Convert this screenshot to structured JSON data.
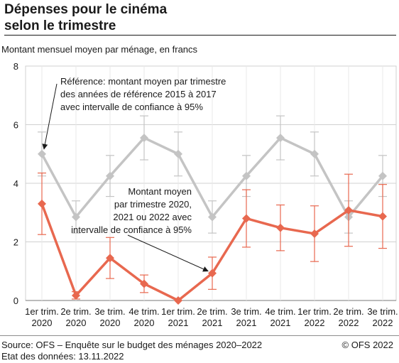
{
  "title_line1": "Dépenses pour le cinéma",
  "title_line2": "selon le trimestre",
  "subtitle": "Montant mensuel moyen par ménage, en francs",
  "source": "Source: OFS – Enquête sur le budget des ménages 2020–2022",
  "date": "Etat des données: 13.11.2022",
  "copyright": "© OFS 2022",
  "chart_data": {
    "type": "line",
    "categories": [
      [
        "1er trim.",
        "2020"
      ],
      [
        "2e trim.",
        "2020"
      ],
      [
        "3e trim.",
        "2020"
      ],
      [
        "4e trim.",
        "2020"
      ],
      [
        "1er trim.",
        "2021"
      ],
      [
        "2e trim.",
        "2021"
      ],
      [
        "3e trim.",
        "2021"
      ],
      [
        "4e trim.",
        "2021"
      ],
      [
        "1er trim.",
        "2022"
      ],
      [
        "2e trim.",
        "2022"
      ],
      [
        "3e trim.",
        "2022"
      ]
    ],
    "ylim": [
      0,
      8
    ],
    "yticks": [
      0,
      2,
      4,
      6,
      8
    ],
    "grid": true,
    "series": [
      {
        "color": "#c4c4c4",
        "values": [
          5.0,
          2.85,
          4.25,
          5.55,
          5.0,
          2.85,
          4.25,
          5.55,
          5.0,
          2.85,
          4.25
        ],
        "lower": [
          4.25,
          2.3,
          3.55,
          4.8,
          4.25,
          2.3,
          3.55,
          4.8,
          4.25,
          2.3,
          3.55
        ],
        "upper": [
          5.75,
          3.4,
          4.95,
          6.3,
          5.75,
          3.4,
          4.95,
          6.3,
          5.75,
          3.4,
          4.95
        ]
      },
      {
        "color": "#e8684f",
        "values": [
          3.3,
          0.17,
          1.45,
          0.57,
          0.0,
          0.93,
          2.8,
          2.48,
          2.28,
          3.08,
          2.87
        ],
        "lower": [
          2.25,
          0.05,
          0.75,
          0.27,
          0.0,
          0.38,
          1.82,
          1.7,
          1.33,
          1.85,
          1.78
        ],
        "upper": [
          4.35,
          0.3,
          2.15,
          0.87,
          0.0,
          1.48,
          3.78,
          3.26,
          3.23,
          4.31,
          3.96
        ]
      }
    ],
    "annotations": [
      {
        "id": "ref",
        "lines": [
          "Référence: montant moyen par trimestre",
          "des années de référence 2015 à 2017",
          "avec intervalle de confiance à 95%"
        ]
      },
      {
        "id": "cur",
        "lines": [
          "Montant moyen",
          "par trimestre 2020,",
          "2021 ou 2022 avec",
          "intervalle de confiance à 95%"
        ]
      }
    ]
  }
}
